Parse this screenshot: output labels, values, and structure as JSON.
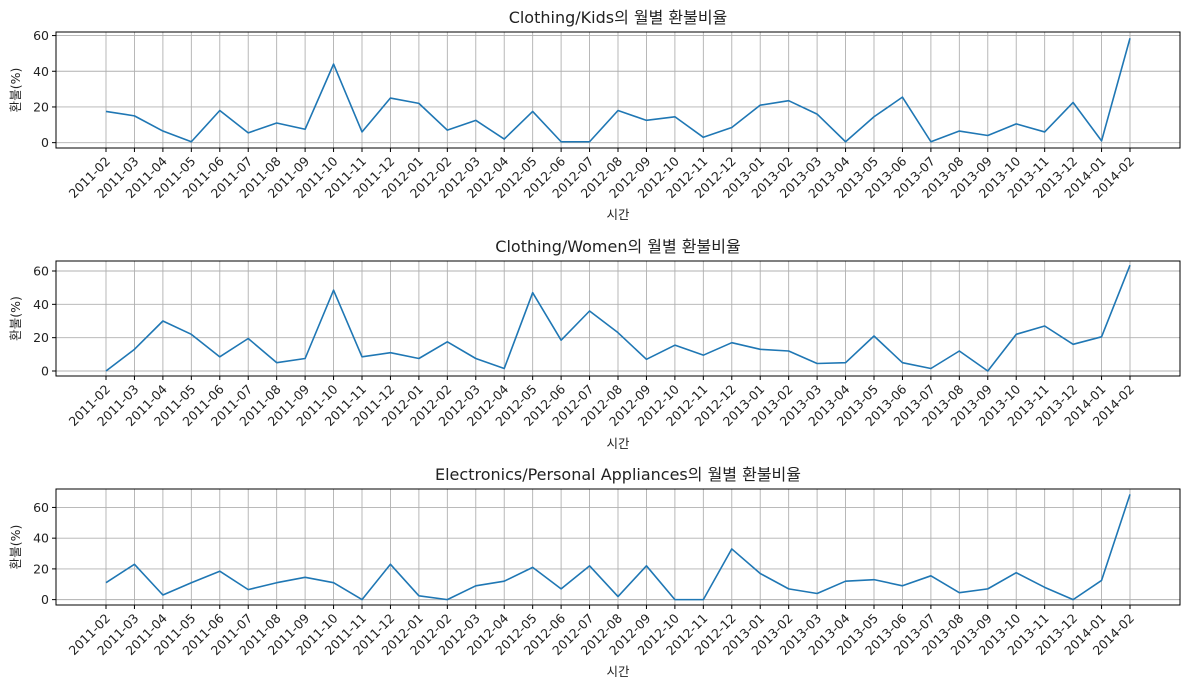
{
  "chart_data": [
    {
      "type": "line",
      "title": "Clothing/Kids의 월별 환불비율",
      "xlabel": "시간",
      "ylabel": "환불(%)",
      "x": [
        "2011-02",
        "2011-03",
        "2011-04",
        "2011-05",
        "2011-06",
        "2011-07",
        "2011-08",
        "2011-09",
        "2011-10",
        "2011-11",
        "2011-12",
        "2012-01",
        "2012-02",
        "2012-03",
        "2012-04",
        "2012-05",
        "2012-06",
        "2012-07",
        "2012-08",
        "2012-09",
        "2012-10",
        "2012-11",
        "2012-12",
        "2013-01",
        "2013-02",
        "2013-03",
        "2013-04",
        "2013-05",
        "2013-06",
        "2013-07",
        "2013-08",
        "2013-09",
        "2013-10",
        "2013-11",
        "2013-12",
        "2014-01",
        "2014-02"
      ],
      "values": [
        17.5,
        15,
        6.5,
        0.5,
        18,
        5.5,
        11,
        7.5,
        44,
        6,
        25,
        22,
        7,
        12.5,
        2,
        17.5,
        0.5,
        0.5,
        18,
        12.5,
        14.5,
        3,
        8.5,
        21,
        23.5,
        16,
        0.5,
        14.5,
        25.5,
        0.5,
        6.5,
        4,
        10.5,
        6,
        22.5,
        1,
        58.5
      ],
      "yticks": [
        0,
        20,
        40,
        60
      ],
      "ylim": [
        -3,
        62
      ],
      "grid": true,
      "color": "#1f77b4"
    },
    {
      "type": "line",
      "title": "Clothing/Women의 월별 환불비율",
      "xlabel": "시간",
      "ylabel": "환불(%)",
      "x": [
        "2011-02",
        "2011-03",
        "2011-04",
        "2011-05",
        "2011-06",
        "2011-07",
        "2011-08",
        "2011-09",
        "2011-10",
        "2011-11",
        "2011-12",
        "2012-01",
        "2012-02",
        "2012-03",
        "2012-04",
        "2012-05",
        "2012-06",
        "2012-07",
        "2012-08",
        "2012-09",
        "2012-10",
        "2012-11",
        "2012-12",
        "2013-01",
        "2013-02",
        "2013-03",
        "2013-04",
        "2013-05",
        "2013-06",
        "2013-07",
        "2013-08",
        "2013-09",
        "2013-10",
        "2013-11",
        "2013-12",
        "2014-01",
        "2014-02"
      ],
      "values": [
        0,
        13,
        30,
        22,
        8.5,
        19.5,
        5,
        7.5,
        48.5,
        8.5,
        11,
        7.5,
        17.5,
        7.5,
        1.5,
        47,
        18.5,
        36,
        23,
        7,
        15.5,
        9.5,
        17,
        13,
        12,
        4.5,
        5,
        21,
        5,
        1.5,
        12,
        0,
        22,
        27,
        16,
        20.5,
        63.5
      ],
      "yticks": [
        0,
        20,
        40,
        60
      ],
      "ylim": [
        -3,
        66
      ],
      "grid": true,
      "color": "#1f77b4"
    },
    {
      "type": "line",
      "title": "Electronics/Personal Appliances의 월별 환불비율",
      "xlabel": "시간",
      "ylabel": "환불(%)",
      "x": [
        "2011-02",
        "2011-03",
        "2011-04",
        "2011-05",
        "2011-06",
        "2011-07",
        "2011-08",
        "2011-09",
        "2011-10",
        "2011-11",
        "2011-12",
        "2012-01",
        "2012-02",
        "2012-03",
        "2012-04",
        "2012-05",
        "2012-06",
        "2012-07",
        "2012-08",
        "2012-09",
        "2012-10",
        "2012-11",
        "2012-12",
        "2013-01",
        "2013-02",
        "2013-03",
        "2013-04",
        "2013-05",
        "2013-06",
        "2013-07",
        "2013-08",
        "2013-09",
        "2013-10",
        "2013-11",
        "2013-12",
        "2014-01",
        "2014-02"
      ],
      "values": [
        11,
        23,
        3,
        11,
        18.5,
        6.5,
        11,
        14.5,
        11,
        0,
        23,
        2.5,
        0,
        9,
        12,
        21,
        7,
        22,
        2,
        22,
        0,
        0,
        33,
        17,
        7,
        4,
        12,
        13,
        9,
        15.5,
        4.5,
        7,
        17.5,
        8,
        0,
        12.5,
        68.5
      ],
      "yticks": [
        0,
        20,
        40,
        60
      ],
      "ylim": [
        -3.5,
        72
      ],
      "grid": true,
      "color": "#1f77b4"
    }
  ]
}
